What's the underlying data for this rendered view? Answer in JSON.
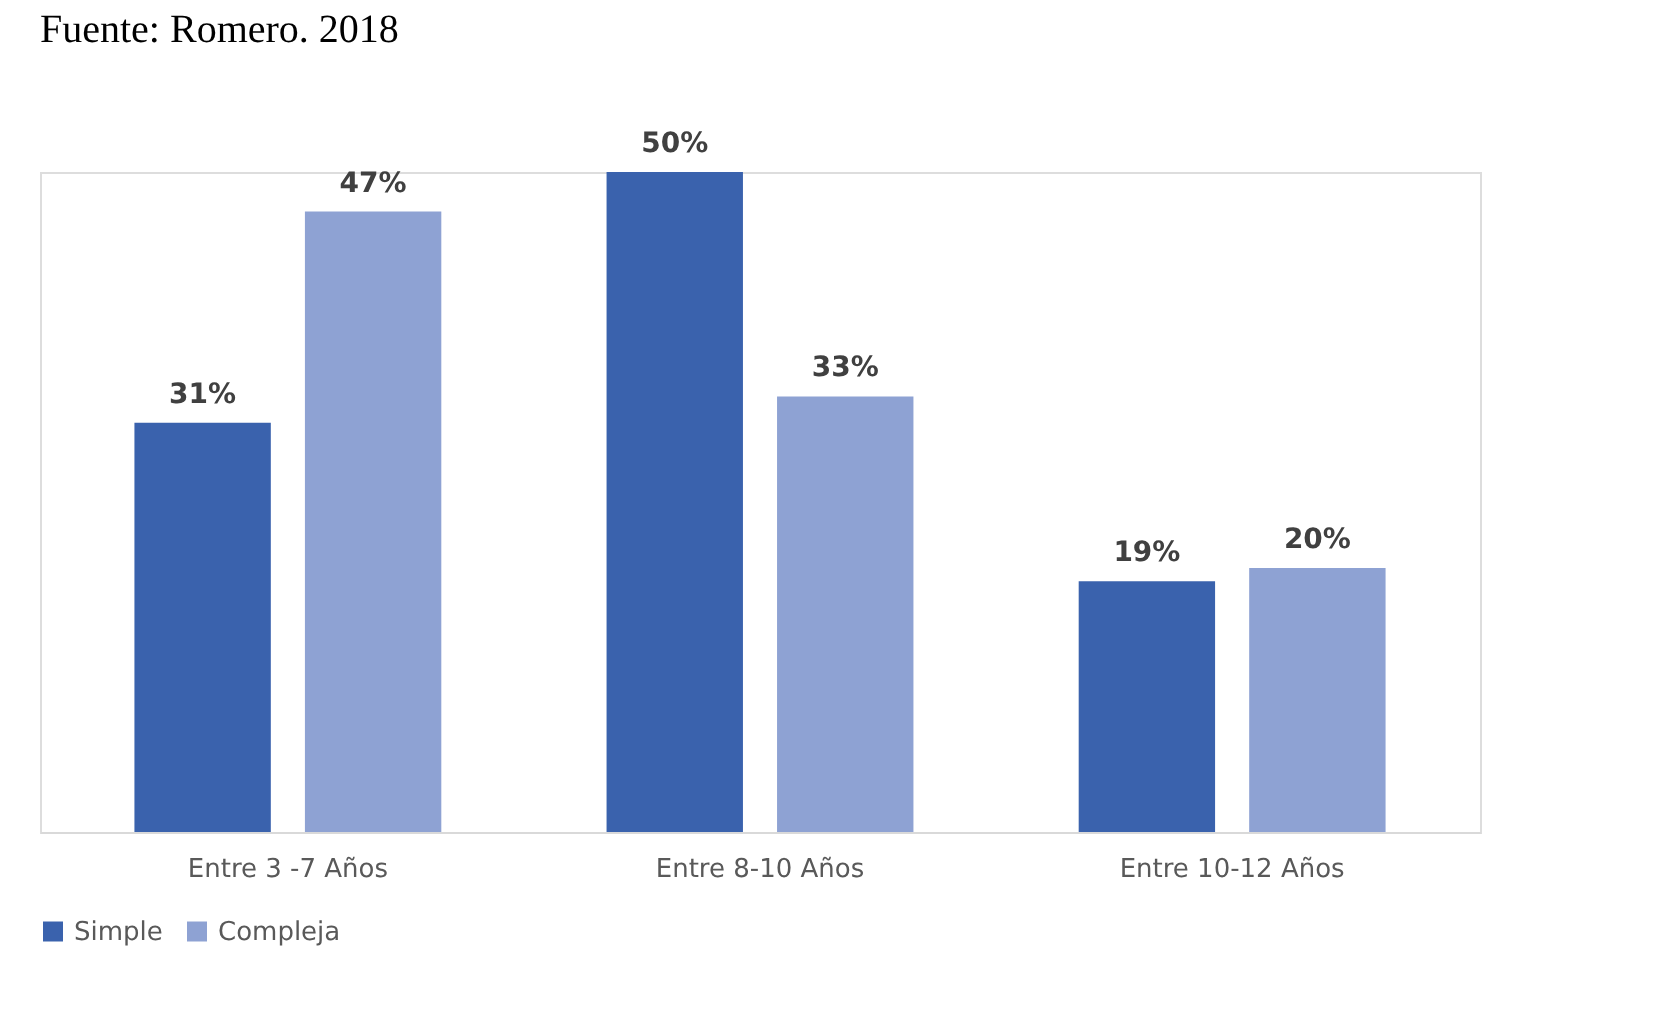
{
  "chart_data": {
    "type": "bar",
    "categories": [
      "Entre 3 -7 Años",
      "Entre 8-10 Años",
      "Entre 10-12 Años"
    ],
    "series": [
      {
        "name": "Simple",
        "color": "#3a62ad",
        "values": [
          31,
          50,
          19
        ],
        "value_labels": [
          "31%",
          "50%",
          "19%"
        ]
      },
      {
        "name": "Compleja",
        "color": "#8ea2d3",
        "values": [
          47,
          33,
          20
        ],
        "value_labels": [
          "47%",
          "33%",
          "20%"
        ]
      }
    ],
    "legend": "bottom",
    "grid": false,
    "annotations": [
      "Fuente: Romero. 2018"
    ]
  }
}
